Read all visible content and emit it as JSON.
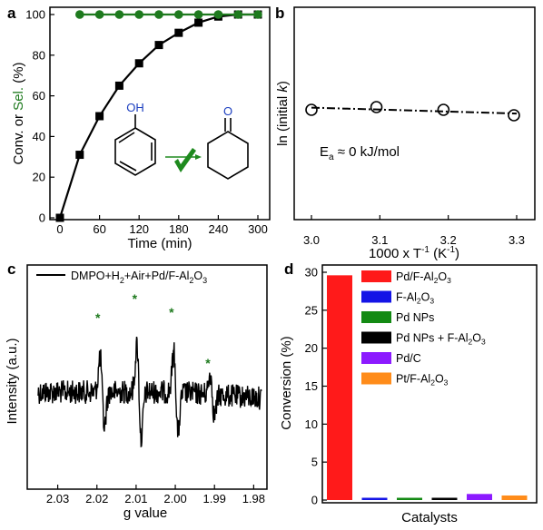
{
  "chart_data": [
    {
      "panel": "a",
      "type": "line",
      "xlabel": "Time (min)",
      "ylabel_part1": "Conv. or ",
      "ylabel_part2": "Sel.",
      "ylabel_part3": " (%)",
      "xlim": [
        0,
        300
      ],
      "ylim": [
        0,
        100
      ],
      "xticks": [
        0,
        60,
        120,
        180,
        240,
        300
      ],
      "yticks": [
        0,
        20,
        40,
        60,
        80,
        100
      ],
      "series": [
        {
          "role": "conversion",
          "color": "#000000",
          "marker": "square",
          "x": [
            0,
            30,
            60,
            90,
            120,
            150,
            180,
            210,
            240,
            270,
            300
          ],
          "y": [
            0,
            31,
            50,
            65,
            76,
            85,
            91,
            96,
            99,
            100,
            100
          ]
        },
        {
          "role": "selectivity",
          "color": "#1e7a1e",
          "marker": "circle",
          "x": [
            30,
            60,
            90,
            120,
            150,
            180,
            210,
            240,
            270,
            300
          ],
          "y": [
            100,
            100,
            100,
            100,
            100,
            100,
            100,
            100,
            100,
            100
          ]
        }
      ],
      "scheme": {
        "oh_label": "OH",
        "o_label": "O",
        "oh_color": "#1a3dbf",
        "check_color": "#1e8a1e"
      }
    },
    {
      "panel": "b",
      "type": "scatter",
      "xlabel_main": "1000 x T",
      "xlabel_sup": "-1",
      "xlabel_unit": " (K",
      "xlabel_unit_sup": "-1",
      "xlabel_close": ")",
      "ylabel_main": "ln (initial ",
      "ylabel_k": "k",
      "ylabel_close": ")",
      "xlim": [
        3.0,
        3.3
      ],
      "xticks": [
        "3.0",
        "3.1",
        "3.2",
        "3.3"
      ],
      "points_x": [
        3.0,
        3.095,
        3.193,
        3.296
      ],
      "points_y": [
        0.0,
        0.005,
        0.0,
        -0.01
      ],
      "annotation": {
        "E": "E",
        "sub": "a",
        "rest": " ≈ 0 kJ/mol"
      }
    },
    {
      "panel": "c",
      "type": "line",
      "legend": {
        "t1": "DMPO+H",
        "s1": "2",
        "t2": "+Air+Pd/F-Al",
        "s2": "2",
        "t3": "O",
        "s3": "3"
      },
      "xlabel": "g value",
      "ylabel": "Intensity (a.u.)",
      "xlim": [
        2.035,
        1.978
      ],
      "xticks": [
        "2.03",
        "2.02",
        "2.01",
        "2.00",
        "1.99",
        "1.98"
      ],
      "xtick_values": [
        2.03,
        2.02,
        2.01,
        2.0,
        1.99,
        1.98
      ],
      "peaks_g": [
        2.0193,
        2.0099,
        2.0005,
        1.9912
      ],
      "star": "*",
      "star_color": "#1e7a1e"
    },
    {
      "panel": "d",
      "type": "bar",
      "xlabel": "Catalysts",
      "ylabel": "Conversion (%)",
      "ylim": [
        0,
        30
      ],
      "yticks": [
        0,
        5,
        10,
        15,
        20,
        25,
        30
      ],
      "categories": [
        {
          "base": "Pd/F-Al",
          "s1": "2",
          "mid": "O",
          "s2": "3",
          "color": "#ff1a1a"
        },
        {
          "base": "F-Al",
          "s1": "2",
          "mid": "O",
          "s2": "3",
          "color": "#1414e6"
        },
        {
          "base": "Pd NPs",
          "s1": "",
          "mid": "",
          "s2": "",
          "color": "#138a13"
        },
        {
          "base": "Pd NPs + F-Al",
          "s1": "2",
          "mid": "O",
          "s2": "3",
          "color": "#000000"
        },
        {
          "base": "Pd/C",
          "s1": "",
          "mid": "",
          "s2": "",
          "color": "#8c1aff"
        },
        {
          "base": "Pt/F-Al",
          "s1": "2",
          "mid": "O",
          "s2": "3",
          "color": "#ff8c1a"
        }
      ],
      "values": [
        29.6,
        0.3,
        0.2,
        0.3,
        0.8,
        0.6
      ]
    }
  ],
  "panel_labels": [
    "a",
    "b",
    "c",
    "d"
  ]
}
